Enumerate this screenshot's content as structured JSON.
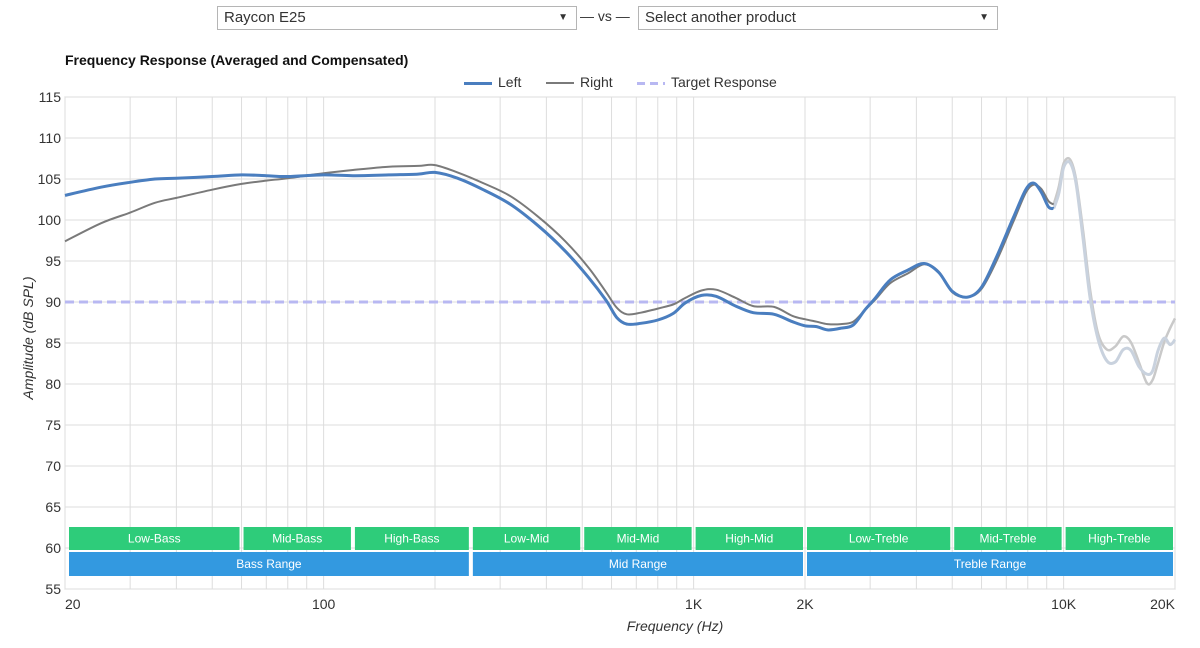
{
  "selectors": {
    "left_value": "Raycon E25",
    "separator": "— vs —",
    "right_value": "Select another product",
    "caret": "▼"
  },
  "chart_data": {
    "type": "line",
    "title": "Frequency Response (Averaged and Compensated)",
    "xlabel": "Frequency (Hz)",
    "ylabel": "Amplitude (dB SPL)",
    "xscale": "log",
    "xlim": [
      20,
      20000
    ],
    "ylim": [
      55,
      115
    ],
    "grid": true,
    "legend_position": "top-center",
    "x_ticks": [
      {
        "value": 20,
        "label": "20"
      },
      {
        "value": 100,
        "label": "100"
      },
      {
        "value": 1000,
        "label": "1K"
      },
      {
        "value": 2000,
        "label": "2K"
      },
      {
        "value": 10000,
        "label": "10K"
      },
      {
        "value": 20000,
        "label": "20K"
      }
    ],
    "y_ticks": [
      115,
      110,
      105,
      100,
      95,
      90,
      85,
      80,
      75,
      70,
      65,
      60,
      55
    ],
    "series": [
      {
        "name": "Left",
        "color": "#4a7ebf",
        "points": [
          [
            20,
            103
          ],
          [
            25,
            104
          ],
          [
            30,
            104.6
          ],
          [
            35,
            105
          ],
          [
            40,
            105.1
          ],
          [
            50,
            105.3
          ],
          [
            60,
            105.5
          ],
          [
            70,
            105.4
          ],
          [
            80,
            105.3
          ],
          [
            100,
            105.5
          ],
          [
            120,
            105.4
          ],
          [
            150,
            105.5
          ],
          [
            180,
            105.6
          ],
          [
            200,
            105.8
          ],
          [
            230,
            105.1
          ],
          [
            270,
            103.7
          ],
          [
            320,
            101.9
          ],
          [
            380,
            99.3
          ],
          [
            450,
            96.2
          ],
          [
            520,
            93
          ],
          [
            580,
            90.2
          ],
          [
            620,
            88.1
          ],
          [
            660,
            87.3
          ],
          [
            720,
            87.4
          ],
          [
            800,
            87.8
          ],
          [
            880,
            88.6
          ],
          [
            950,
            89.9
          ],
          [
            1050,
            90.8
          ],
          [
            1150,
            90.7
          ],
          [
            1300,
            89.5
          ],
          [
            1450,
            88.7
          ],
          [
            1650,
            88.5
          ],
          [
            1850,
            87.6
          ],
          [
            2000,
            87.1
          ],
          [
            2150,
            87.0
          ],
          [
            2300,
            86.6
          ],
          [
            2500,
            86.8
          ],
          [
            2700,
            87.2
          ],
          [
            2900,
            89.0
          ],
          [
            3100,
            90.5
          ],
          [
            3400,
            92.7
          ],
          [
            3800,
            93.9
          ],
          [
            4200,
            94.7
          ],
          [
            4600,
            93.6
          ],
          [
            5000,
            91.3
          ],
          [
            5500,
            90.6
          ],
          [
            6000,
            91.8
          ],
          [
            6600,
            95.6
          ],
          [
            7300,
            100.2
          ],
          [
            7900,
            103.7
          ],
          [
            8300,
            104.5
          ],
          [
            8700,
            103.4
          ],
          [
            9100,
            101.6
          ],
          [
            9400,
            101.4
          ]
        ]
      },
      {
        "name": "Right",
        "color": "#7a7a7a",
        "points": [
          [
            20,
            97.4
          ],
          [
            25,
            99.6
          ],
          [
            30,
            100.9
          ],
          [
            35,
            102.1
          ],
          [
            40,
            102.7
          ],
          [
            50,
            103.7
          ],
          [
            60,
            104.4
          ],
          [
            70,
            104.8
          ],
          [
            80,
            105.1
          ],
          [
            100,
            105.7
          ],
          [
            120,
            106.1
          ],
          [
            150,
            106.5
          ],
          [
            180,
            106.6
          ],
          [
            200,
            106.7
          ],
          [
            230,
            105.8
          ],
          [
            270,
            104.5
          ],
          [
            320,
            102.9
          ],
          [
            380,
            100.4
          ],
          [
            450,
            97.4
          ],
          [
            520,
            94.2
          ],
          [
            580,
            91.2
          ],
          [
            620,
            89.3
          ],
          [
            660,
            88.5
          ],
          [
            720,
            88.7
          ],
          [
            800,
            89.2
          ],
          [
            880,
            89.7
          ],
          [
            950,
            90.5
          ],
          [
            1050,
            91.4
          ],
          [
            1150,
            91.5
          ],
          [
            1300,
            90.5
          ],
          [
            1450,
            89.5
          ],
          [
            1650,
            89.4
          ],
          [
            1850,
            88.3
          ],
          [
            2000,
            87.9
          ],
          [
            2150,
            87.6
          ],
          [
            2300,
            87.3
          ],
          [
            2500,
            87.3
          ],
          [
            2700,
            87.6
          ],
          [
            2900,
            89.0
          ],
          [
            3100,
            90.3
          ],
          [
            3400,
            92.3
          ],
          [
            3800,
            93.5
          ],
          [
            4200,
            94.6
          ],
          [
            4600,
            93.7
          ],
          [
            5000,
            91.2
          ],
          [
            5500,
            90.6
          ],
          [
            6000,
            91.6
          ],
          [
            6600,
            95.1
          ],
          [
            7300,
            99.7
          ],
          [
            7900,
            103.3
          ],
          [
            8300,
            104.3
          ],
          [
            8700,
            103.8
          ],
          [
            9100,
            102.3
          ],
          [
            9400,
            101.9
          ]
        ]
      },
      {
        "name": "Target Response",
        "color": "#b8b8f2",
        "points": [
          [
            20,
            90
          ],
          [
            20000,
            90
          ]
        ]
      }
    ],
    "faded_high_treble": {
      "left_color": "#c9d2de",
      "right_color": "#c9c9c9",
      "left_points": [
        [
          9400,
          101.4
        ],
        [
          9700,
          103.2
        ],
        [
          10000,
          106.4
        ],
        [
          10400,
          107.0
        ],
        [
          10800,
          104.5
        ],
        [
          11300,
          97.5
        ],
        [
          11800,
          90.4
        ],
        [
          12400,
          85.4
        ],
        [
          13100,
          82.8
        ],
        [
          13800,
          82.7
        ],
        [
          14500,
          84.2
        ],
        [
          15200,
          84.1
        ],
        [
          16000,
          82.1
        ],
        [
          16800,
          81.2
        ],
        [
          17400,
          81.6
        ],
        [
          18000,
          84.1
        ],
        [
          18700,
          85.6
        ],
        [
          19400,
          84.8
        ],
        [
          20000,
          85.4
        ]
      ],
      "right_points": [
        [
          9400,
          101.9
        ],
        [
          9700,
          104.0
        ],
        [
          10000,
          106.9
        ],
        [
          10400,
          107.4
        ],
        [
          10800,
          105.0
        ],
        [
          11300,
          98.5
        ],
        [
          11800,
          91.4
        ],
        [
          12400,
          86.1
        ],
        [
          13100,
          84.2
        ],
        [
          13800,
          84.6
        ],
        [
          14500,
          85.8
        ],
        [
          15200,
          85.1
        ],
        [
          16000,
          82.6
        ],
        [
          16800,
          80.1
        ],
        [
          17400,
          80.5
        ],
        [
          18000,
          82.6
        ],
        [
          18700,
          85.1
        ],
        [
          19400,
          86.8
        ],
        [
          20000,
          88.0
        ]
      ]
    },
    "bands": {
      "row1": {
        "color": "#2ecc7a",
        "items": [
          {
            "label": "Low-Bass",
            "from": 20,
            "to": 60
          },
          {
            "label": "Mid-Bass",
            "from": 60,
            "to": 120
          },
          {
            "label": "High-Bass",
            "from": 120,
            "to": 250
          },
          {
            "label": "Low-Mid",
            "from": 250,
            "to": 500
          },
          {
            "label": "Mid-Mid",
            "from": 500,
            "to": 1000
          },
          {
            "label": "High-Mid",
            "from": 1000,
            "to": 2000
          },
          {
            "label": "Low-Treble",
            "from": 2000,
            "to": 5000
          },
          {
            "label": "Mid-Treble",
            "from": 5000,
            "to": 10000
          },
          {
            "label": "High-Treble",
            "from": 10000,
            "to": 20000
          }
        ]
      },
      "row2": {
        "color": "#3399e0",
        "items": [
          {
            "label": "Bass Range",
            "from": 20,
            "to": 250
          },
          {
            "label": "Mid Range",
            "from": 250,
            "to": 2000
          },
          {
            "label": "Treble Range",
            "from": 2000,
            "to": 20000
          }
        ]
      }
    }
  }
}
